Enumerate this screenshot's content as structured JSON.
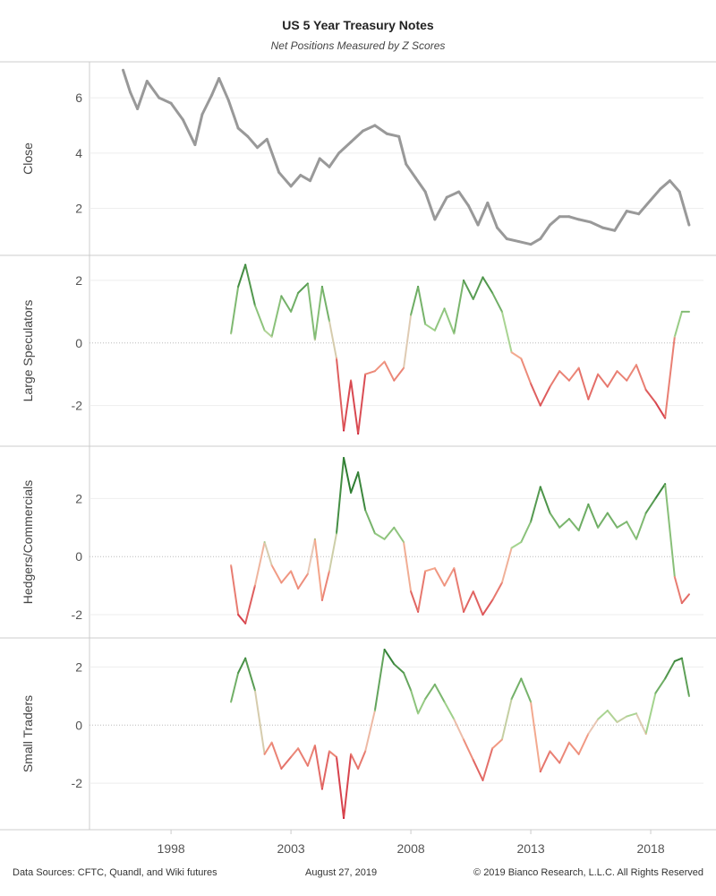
{
  "header": {
    "title": "US 5 Year Treasury Notes",
    "subtitle": "Net Positions Measured by Z Scores"
  },
  "footer": {
    "sources": "Data Sources: CFTC, Quandl, and Wiki futures",
    "date": "August 27, 2019",
    "copyright": "© 2019 Bianco Research, L.L.C. All Rights Reserved"
  },
  "colors": {
    "close_line": "#999999",
    "positive_strong": "#2e7d32",
    "positive_light": "#a5d58f",
    "neutral": "#e8c9b8",
    "negative_light": "#f4a58a",
    "negative_strong": "#c8102e",
    "grid": "#eeeeee",
    "zero_line": "#bbbbbb",
    "panel_border": "#cccccc"
  },
  "chart_data": [
    {
      "type": "line",
      "panel": "close",
      "ylabel": "Close",
      "yticks": [
        2,
        4,
        6
      ],
      "ylim": [
        0.3,
        7.3
      ],
      "color_mode": "gray",
      "x": [
        1996.0,
        1996.3,
        1996.6,
        1997.0,
        1997.5,
        1998.0,
        1998.5,
        1999.0,
        1999.3,
        1999.7,
        2000.0,
        2000.4,
        2000.8,
        2001.2,
        2001.6,
        2002.0,
        2002.5,
        2003.0,
        2003.4,
        2003.8,
        2004.2,
        2004.6,
        2005.0,
        2005.5,
        2006.0,
        2006.5,
        2007.0,
        2007.5,
        2007.8,
        2008.2,
        2008.6,
        2009.0,
        2009.5,
        2010.0,
        2010.4,
        2010.8,
        2011.2,
        2011.6,
        2012.0,
        2012.5,
        2013.0,
        2013.4,
        2013.8,
        2014.2,
        2014.6,
        2015.0,
        2015.5,
        2016.0,
        2016.5,
        2017.0,
        2017.5,
        2018.0,
        2018.4,
        2018.8,
        2019.2,
        2019.6
      ],
      "y": [
        7.0,
        6.2,
        5.6,
        6.6,
        6.0,
        5.8,
        5.2,
        4.3,
        5.4,
        6.1,
        6.7,
        5.9,
        4.9,
        4.6,
        4.2,
        4.5,
        3.3,
        2.8,
        3.2,
        3.0,
        3.8,
        3.5,
        4.0,
        4.4,
        4.8,
        5.0,
        4.7,
        4.6,
        3.6,
        3.1,
        2.6,
        1.6,
        2.4,
        2.6,
        2.1,
        1.4,
        2.2,
        1.3,
        0.9,
        0.8,
        0.7,
        0.9,
        1.4,
        1.7,
        1.7,
        1.6,
        1.5,
        1.3,
        1.2,
        1.9,
        1.8,
        2.3,
        2.7,
        3.0,
        2.6,
        1.4
      ]
    },
    {
      "type": "line",
      "panel": "large_speculators",
      "ylabel": "Large Speculators",
      "yticks": [
        -2,
        0,
        2
      ],
      "ylim": [
        -3.3,
        2.8
      ],
      "color_mode": "zscore",
      "x": [
        2000.5,
        2000.8,
        2001.1,
        2001.5,
        2001.9,
        2002.2,
        2002.6,
        2003.0,
        2003.3,
        2003.7,
        2004.0,
        2004.3,
        2004.6,
        2004.9,
        2005.2,
        2005.5,
        2005.8,
        2006.1,
        2006.5,
        2006.9,
        2007.3,
        2007.7,
        2008.0,
        2008.3,
        2008.6,
        2009.0,
        2009.4,
        2009.8,
        2010.2,
        2010.6,
        2011.0,
        2011.4,
        2011.8,
        2012.2,
        2012.6,
        2013.0,
        2013.4,
        2013.8,
        2014.2,
        2014.6,
        2015.0,
        2015.4,
        2015.8,
        2016.2,
        2016.6,
        2017.0,
        2017.4,
        2017.8,
        2018.2,
        2018.6,
        2019.0,
        2019.3,
        2019.6
      ],
      "y": [
        0.3,
        1.8,
        2.5,
        1.2,
        0.4,
        0.2,
        1.5,
        1.0,
        1.6,
        1.9,
        0.1,
        1.8,
        0.7,
        -0.5,
        -2.8,
        -1.2,
        -2.9,
        -1.0,
        -0.9,
        -0.6,
        -1.2,
        -0.8,
        0.9,
        1.8,
        0.6,
        0.4,
        1.1,
        0.3,
        2.0,
        1.4,
        2.1,
        1.6,
        1.0,
        -0.3,
        -0.5,
        -1.3,
        -2.0,
        -1.4,
        -0.9,
        -1.2,
        -0.8,
        -1.8,
        -1.0,
        -1.4,
        -0.9,
        -1.2,
        -0.7,
        -1.5,
        -1.9,
        -2.4,
        0.2,
        1.0,
        1.0
      ]
    },
    {
      "type": "line",
      "panel": "hedgers_commercials",
      "ylabel": "Hedgers/Commercials",
      "yticks": [
        -2,
        0,
        2
      ],
      "ylim": [
        -2.8,
        3.8
      ],
      "color_mode": "zscore",
      "x": [
        2000.5,
        2000.8,
        2001.1,
        2001.5,
        2001.9,
        2002.2,
        2002.6,
        2003.0,
        2003.3,
        2003.7,
        2004.0,
        2004.3,
        2004.6,
        2004.9,
        2005.2,
        2005.5,
        2005.8,
        2006.1,
        2006.5,
        2006.9,
        2007.3,
        2007.7,
        2008.0,
        2008.3,
        2008.6,
        2009.0,
        2009.4,
        2009.8,
        2010.2,
        2010.6,
        2011.0,
        2011.4,
        2011.8,
        2012.2,
        2012.6,
        2013.0,
        2013.4,
        2013.8,
        2014.2,
        2014.6,
        2015.0,
        2015.4,
        2015.8,
        2016.2,
        2016.6,
        2017.0,
        2017.4,
        2017.8,
        2018.2,
        2018.6,
        2019.0,
        2019.3,
        2019.6
      ],
      "y": [
        -0.3,
        -2.0,
        -2.3,
        -1.0,
        0.5,
        -0.3,
        -0.9,
        -0.5,
        -1.1,
        -0.6,
        0.6,
        -1.5,
        -0.5,
        0.8,
        3.4,
        2.2,
        2.9,
        1.6,
        0.8,
        0.6,
        1.0,
        0.5,
        -1.2,
        -1.9,
        -0.5,
        -0.4,
        -1.0,
        -0.4,
        -1.9,
        -1.2,
        -2.0,
        -1.5,
        -0.9,
        0.3,
        0.5,
        1.2,
        2.4,
        1.5,
        1.0,
        1.3,
        0.9,
        1.8,
        1.0,
        1.5,
        1.0,
        1.2,
        0.6,
        1.5,
        2.0,
        2.5,
        -0.7,
        -1.6,
        -1.3
      ]
    },
    {
      "type": "line",
      "panel": "small_traders",
      "ylabel": "Small Traders",
      "yticks": [
        -2,
        0,
        2
      ],
      "ylim": [
        -3.6,
        3.0
      ],
      "color_mode": "zscore",
      "x": [
        2000.5,
        2000.8,
        2001.1,
        2001.5,
        2001.9,
        2002.2,
        2002.6,
        2003.0,
        2003.3,
        2003.7,
        2004.0,
        2004.3,
        2004.6,
        2004.9,
        2005.2,
        2005.5,
        2005.8,
        2006.1,
        2006.5,
        2006.9,
        2007.3,
        2007.7,
        2008.0,
        2008.3,
        2008.6,
        2009.0,
        2009.4,
        2009.8,
        2010.2,
        2010.6,
        2011.0,
        2011.4,
        2011.8,
        2012.2,
        2012.6,
        2013.0,
        2013.4,
        2013.8,
        2014.2,
        2014.6,
        2015.0,
        2015.4,
        2015.8,
        2016.2,
        2016.6,
        2017.0,
        2017.4,
        2017.8,
        2018.2,
        2018.6,
        2019.0,
        2019.3,
        2019.6
      ],
      "y": [
        0.8,
        1.8,
        2.3,
        1.2,
        -1.0,
        -0.6,
        -1.5,
        -1.1,
        -0.8,
        -1.4,
        -0.7,
        -2.2,
        -0.9,
        -1.1,
        -3.2,
        -1.0,
        -1.5,
        -0.9,
        0.5,
        2.6,
        2.1,
        1.8,
        1.2,
        0.4,
        0.9,
        1.4,
        0.8,
        0.2,
        -0.5,
        -1.2,
        -1.9,
        -0.8,
        -0.5,
        0.9,
        1.6,
        0.8,
        -1.6,
        -0.9,
        -1.3,
        -0.6,
        -1.0,
        -0.3,
        0.2,
        0.5,
        0.1,
        0.3,
        0.4,
        -0.3,
        1.1,
        1.6,
        2.2,
        2.3,
        1.0
      ]
    }
  ],
  "x_axis": {
    "range": [
      1994.6,
      2020.2
    ],
    "ticks": [
      1998,
      2003,
      2008,
      2013,
      2018
    ],
    "tick_labels": [
      "1998",
      "2003",
      "2008",
      "2013",
      "2018"
    ]
  }
}
